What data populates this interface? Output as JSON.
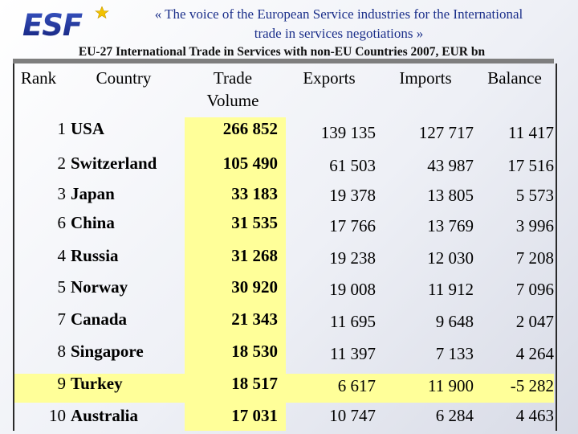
{
  "header": {
    "logo_text": "ESF",
    "tagline_line1": "« The voice of the European Service industries for the International",
    "tagline_line2": "trade in services negotiations »"
  },
  "table": {
    "title": "EU-27 International Trade in Services with non-EU Countries 2007, EUR bn",
    "columns": {
      "rank": "Rank",
      "country": "Country",
      "volume_line1": "Trade",
      "volume_line2": "Volume",
      "exports": "Exports",
      "imports": "Imports",
      "balance": "Balance"
    },
    "rows": [
      {
        "rank": "1",
        "country": "USA",
        "volume": "266 852",
        "exports": "139 135",
        "imports": "127 717",
        "balance": "11 417"
      },
      {
        "rank": "2",
        "country": "Switzerland",
        "volume": "105 490",
        "exports": "61 503",
        "imports": "43 987",
        "balance": "17 516"
      },
      {
        "rank": "3",
        "country": "Japan",
        "volume": "33 183",
        "exports": "19 378",
        "imports": "13 805",
        "balance": "5 573"
      },
      {
        "rank": "6",
        "country": "China",
        "volume": "31 535",
        "exports": "17 766",
        "imports": "13 769",
        "balance": "3 996"
      },
      {
        "rank": "4",
        "country": "Russia",
        "volume": "31 268",
        "exports": "19 238",
        "imports": "12 030",
        "balance": "7 208"
      },
      {
        "rank": "5",
        "country": "Norway",
        "volume": "30 920",
        "exports": "19 008",
        "imports": "11 912",
        "balance": "7 096"
      },
      {
        "rank": "7",
        "country": "Canada",
        "volume": "21 343",
        "exports": "11 695",
        "imports": "9 648",
        "balance": "2 047"
      },
      {
        "rank": "8",
        "country": "Singapore",
        "volume": "18 530",
        "exports": "11 397",
        "imports": "7 133",
        "balance": "4 264"
      },
      {
        "rank": "9",
        "country": "Turkey",
        "volume": "18 517",
        "exports": "6 617",
        "imports": "11 900",
        "balance": "-5 282"
      },
      {
        "rank": "10",
        "country": "Australia",
        "volume": "17 031",
        "exports": "10 747",
        "imports": "6 284",
        "balance": "4 463"
      }
    ]
  },
  "colors": {
    "highlight": "#ffff99",
    "logo_blue": "#1b2f8a",
    "logo_star": "#f2c200"
  }
}
